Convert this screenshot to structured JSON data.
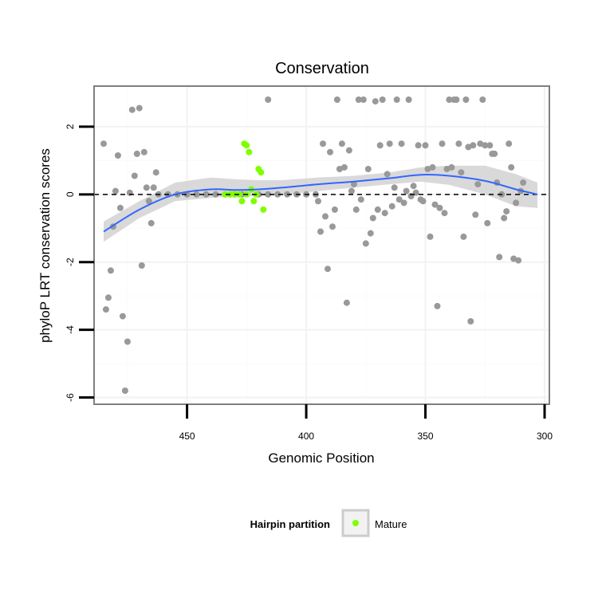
{
  "chart_data": {
    "type": "scatter",
    "title": "Conservation",
    "xlabel": "Genomic Position",
    "ylabel": "phyloP LRT conservation scores",
    "x_reversed": true,
    "xlim": [
      298,
      489
    ],
    "ylim": [
      -6.2,
      3.2
    ],
    "x_ticks": [
      450,
      400,
      350,
      300
    ],
    "x_tick_labels": [
      "450",
      "400",
      "350",
      "300"
    ],
    "y_ticks": [
      2,
      0,
      -2,
      -4,
      -6
    ],
    "y_tick_labels": [
      "2",
      "0",
      "-2",
      "-4",
      "-6"
    ],
    "grid": true,
    "reference_line": {
      "y": 0,
      "style": "dashed"
    },
    "colors": {
      "other": "#999999",
      "mature": "#7fff00",
      "smooth": "#3366ff",
      "ribbon": "#cccccc"
    },
    "series": [
      {
        "name": "",
        "color": "#999999",
        "points": [
          [
            485,
            1.5
          ],
          [
            484,
            -3.4
          ],
          [
            483,
            -3.05
          ],
          [
            482,
            -2.25
          ],
          [
            481,
            -0.95
          ],
          [
            480,
            0.1
          ],
          [
            479,
            1.15
          ],
          [
            478,
            -0.4
          ],
          [
            477,
            -3.6
          ],
          [
            476,
            -5.8
          ],
          [
            475,
            -4.35
          ],
          [
            474,
            0.05
          ],
          [
            473,
            2.5
          ],
          [
            472,
            0.55
          ],
          [
            471,
            1.2
          ],
          [
            470,
            2.55
          ],
          [
            469,
            -2.1
          ],
          [
            468,
            1.25
          ],
          [
            467,
            0.2
          ],
          [
            466,
            -0.2
          ],
          [
            465,
            -0.85
          ],
          [
            464,
            0.2
          ],
          [
            463,
            0.65
          ],
          [
            462,
            0
          ],
          [
            458,
            0
          ],
          [
            454,
            0
          ],
          [
            450,
            0
          ],
          [
            446,
            0
          ],
          [
            442,
            0
          ],
          [
            438,
            0
          ],
          [
            434,
            0
          ],
          [
            430,
            0
          ],
          [
            427,
            0
          ],
          [
            420,
            0
          ],
          [
            416,
            0
          ],
          [
            412,
            0
          ],
          [
            408,
            0
          ],
          [
            404,
            0
          ],
          [
            400,
            0
          ],
          [
            396,
            0
          ],
          [
            416,
            2.8
          ],
          [
            395,
            -0.2
          ],
          [
            394,
            -1.1
          ],
          [
            393,
            1.5
          ],
          [
            392,
            -0.65
          ],
          [
            391,
            -2.2
          ],
          [
            390,
            1.25
          ],
          [
            389,
            -0.95
          ],
          [
            388,
            -0.45
          ],
          [
            387,
            2.8
          ],
          [
            386,
            0.75
          ],
          [
            385,
            1.5
          ],
          [
            384,
            0.8
          ],
          [
            383,
            -3.2
          ],
          [
            382,
            1.3
          ],
          [
            381,
            0.1
          ],
          [
            380,
            0.3
          ],
          [
            379,
            -0.45
          ],
          [
            378,
            2.8
          ],
          [
            377,
            -0.15
          ],
          [
            376,
            2.8
          ],
          [
            375,
            -1.45
          ],
          [
            374,
            0.75
          ],
          [
            373,
            -1.15
          ],
          [
            372,
            -0.7
          ],
          [
            371,
            2.75
          ],
          [
            370,
            -0.45
          ],
          [
            369,
            1.45
          ],
          [
            368,
            2.8
          ],
          [
            367,
            -0.55
          ],
          [
            366,
            0.6
          ],
          [
            365,
            1.5
          ],
          [
            364,
            -0.35
          ],
          [
            363,
            0.2
          ],
          [
            362,
            2.8
          ],
          [
            361,
            -0.15
          ],
          [
            360,
            1.5
          ],
          [
            359,
            -0.25
          ],
          [
            358,
            0.1
          ],
          [
            357,
            2.8
          ],
          [
            356,
            -0.05
          ],
          [
            355,
            0.25
          ],
          [
            354,
            0.05
          ],
          [
            353,
            1.45
          ],
          [
            352,
            -0.15
          ],
          [
            351,
            -0.2
          ],
          [
            350,
            1.45
          ],
          [
            349,
            0.75
          ],
          [
            348,
            -1.25
          ],
          [
            347,
            0.8
          ],
          [
            346,
            -0.3
          ],
          [
            345,
            -3.3
          ],
          [
            344,
            -0.4
          ],
          [
            343,
            1.5
          ],
          [
            342,
            -0.55
          ],
          [
            341,
            0.75
          ],
          [
            340,
            2.8
          ],
          [
            339,
            0.8
          ],
          [
            338,
            2.8
          ],
          [
            337,
            2.8
          ],
          [
            336,
            1.5
          ],
          [
            335,
            0.65
          ],
          [
            334,
            -1.25
          ],
          [
            333,
            2.8
          ],
          [
            332,
            1.4
          ],
          [
            331,
            -3.75
          ],
          [
            330,
            1.45
          ],
          [
            329,
            -0.6
          ],
          [
            328,
            0.3
          ],
          [
            327,
            1.5
          ],
          [
            326,
            2.8
          ],
          [
            325,
            1.45
          ],
          [
            324,
            -0.85
          ],
          [
            323,
            1.45
          ],
          [
            322,
            1.2
          ],
          [
            321,
            1.2
          ],
          [
            320,
            0.35
          ],
          [
            319,
            -1.85
          ],
          [
            318,
            0
          ],
          [
            317,
            -0.7
          ],
          [
            316,
            -0.5
          ],
          [
            315,
            1.5
          ],
          [
            314,
            0.8
          ],
          [
            313,
            -1.9
          ],
          [
            312,
            -0.25
          ],
          [
            311,
            -1.95
          ],
          [
            310,
            0.1
          ],
          [
            309,
            0.35
          ]
        ]
      },
      {
        "name": "Mature",
        "color": "#7fff00",
        "points": [
          [
            434,
            0
          ],
          [
            432,
            0
          ],
          [
            430,
            0
          ],
          [
            428,
            0
          ],
          [
            426,
            1.5
          ],
          [
            425,
            1.45
          ],
          [
            424,
            1.25
          ],
          [
            423,
            0.15
          ],
          [
            422,
            -0.2
          ],
          [
            421,
            0
          ],
          [
            420,
            0.75
          ],
          [
            419,
            0.65
          ],
          [
            418,
            -0.45
          ],
          [
            427,
            -0.2
          ],
          [
            425,
            0
          ]
        ]
      }
    ],
    "smooth": {
      "x": [
        485,
        470,
        455,
        440,
        430,
        420,
        410,
        395,
        380,
        365,
        352,
        340,
        325,
        312,
        303
      ],
      "y": [
        -1.1,
        -0.45,
        0.0,
        0.15,
        0.13,
        0.15,
        0.2,
        0.3,
        0.38,
        0.48,
        0.58,
        0.55,
        0.4,
        0.15,
        0.0
      ],
      "upper": [
        -0.8,
        -0.2,
        0.35,
        0.5,
        0.45,
        0.42,
        0.42,
        0.5,
        0.55,
        0.65,
        0.8,
        0.85,
        0.85,
        0.6,
        0.35
      ],
      "lower": [
        -1.4,
        -0.7,
        -0.2,
        -0.1,
        -0.05,
        -0.05,
        -0.02,
        0.1,
        0.2,
        0.3,
        0.38,
        0.28,
        0.0,
        -0.35,
        -0.4
      ]
    },
    "legend": {
      "title": "Hairpin partition",
      "placement": "bottom",
      "entries": [
        "Mature"
      ]
    }
  }
}
